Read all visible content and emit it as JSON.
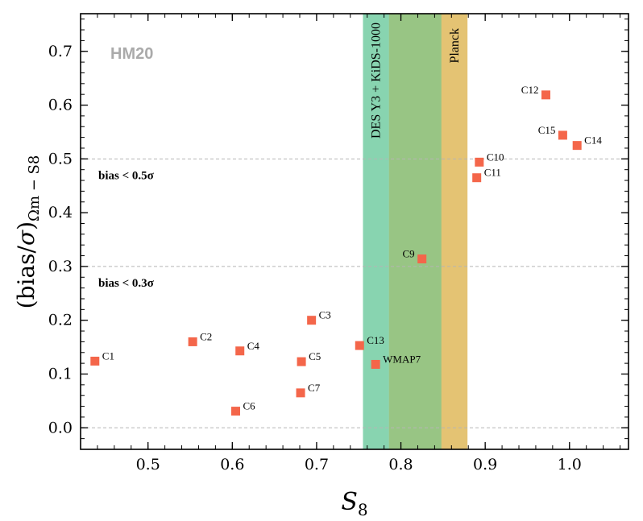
{
  "chart_data": {
    "type": "scatter",
    "corner_label": "HM20",
    "corner_label_color": "#aaaaaa",
    "xlabel_main": "S",
    "xlabel_sub": "8",
    "ylabel_main": "(bias/",
    "ylabel_sigma": "σ",
    "ylabel_close": ")",
    "ylabel_sub": "Ωm − S8",
    "xlim": [
      0.42,
      1.07
    ],
    "ylim": [
      -0.04,
      0.77
    ],
    "xticks": [
      0.5,
      0.6,
      0.7,
      0.8,
      0.9,
      1.0
    ],
    "xtick_labels": [
      "0.5",
      "0.6",
      "0.7",
      "0.8",
      "0.9",
      "1.0"
    ],
    "yticks": [
      0.0,
      0.1,
      0.2,
      0.3,
      0.4,
      0.5,
      0.6,
      0.7
    ],
    "ytick_labels": [
      "0.0",
      "0.1",
      "0.2",
      "0.3",
      "0.4",
      "0.5",
      "0.6",
      "0.7"
    ],
    "marker_color": "#f4664a",
    "bands": [
      {
        "name": "des-kids-band",
        "x0": 0.755,
        "x1": 0.848,
        "color": "#88d4b0",
        "label": "DES Y3 + KiDS-1000"
      },
      {
        "name": "planck-band",
        "x0": 0.786,
        "x1": 0.879,
        "color": "#e4c373",
        "label": "Planck"
      }
    ],
    "overlap_color": "#98c584",
    "hlines": [
      {
        "y": 0.0
      },
      {
        "y": 0.3,
        "label": "bias < 0.3σ"
      },
      {
        "y": 0.5,
        "label": "bias < 0.5σ"
      }
    ],
    "points": [
      {
        "label": "C1",
        "x": 0.437,
        "y": 0.124,
        "side": "right"
      },
      {
        "label": "C2",
        "x": 0.553,
        "y": 0.16,
        "side": "right"
      },
      {
        "label": "C3",
        "x": 0.694,
        "y": 0.2,
        "side": "right"
      },
      {
        "label": "C4",
        "x": 0.609,
        "y": 0.143,
        "side": "right"
      },
      {
        "label": "C5",
        "x": 0.682,
        "y": 0.123,
        "side": "right"
      },
      {
        "label": "C6",
        "x": 0.604,
        "y": 0.031,
        "side": "right"
      },
      {
        "label": "C7",
        "x": 0.681,
        "y": 0.065,
        "side": "right"
      },
      {
        "label": "C9",
        "x": 0.825,
        "y": 0.314,
        "side": "left"
      },
      {
        "label": "C10",
        "x": 0.893,
        "y": 0.494,
        "side": "right"
      },
      {
        "label": "C11",
        "x": 0.89,
        "y": 0.465,
        "side": "right"
      },
      {
        "label": "C12",
        "x": 0.972,
        "y": 0.619,
        "side": "left"
      },
      {
        "label": "C13",
        "x": 0.751,
        "y": 0.153,
        "side": "right"
      },
      {
        "label": "C14",
        "x": 1.009,
        "y": 0.525,
        "side": "right"
      },
      {
        "label": "C15",
        "x": 0.992,
        "y": 0.544,
        "side": "left"
      },
      {
        "label": "WMAP7",
        "x": 0.77,
        "y": 0.118,
        "side": "right"
      }
    ]
  }
}
